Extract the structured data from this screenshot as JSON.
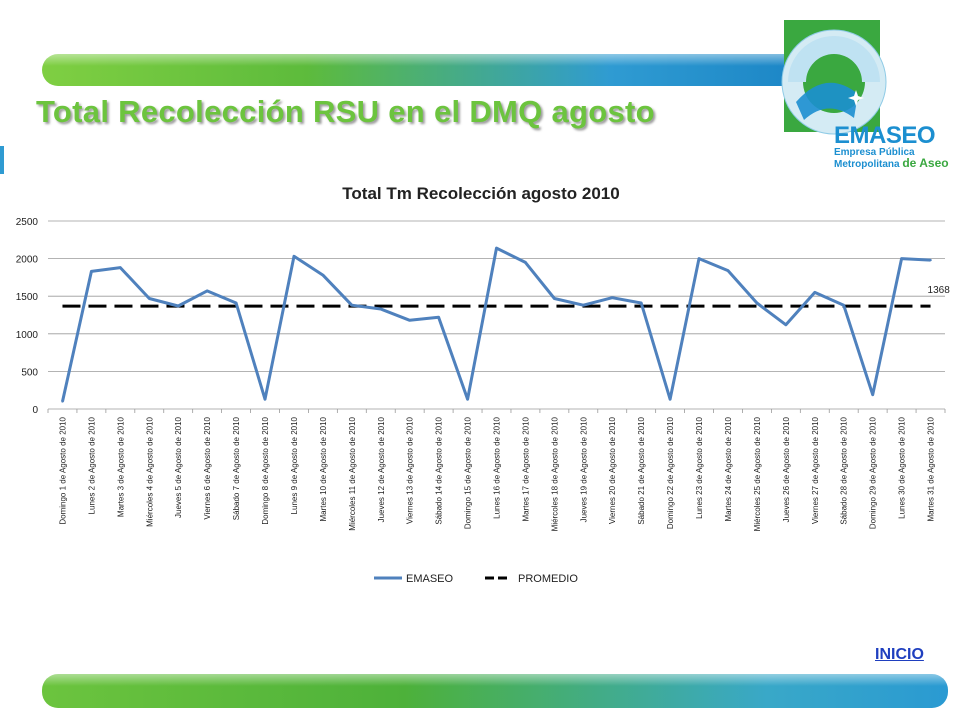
{
  "slide": {
    "title": "Total Recolección RSU en el DMQ agosto",
    "nav_link": "INICIO"
  },
  "logo": {
    "name": "EMASEO",
    "line1": "Empresa Pública",
    "line2_a": "Metropolitana",
    "line2_b": "de Aseo"
  },
  "colors": {
    "series_emaseo": "#4f81bd",
    "series_promedio": "#000000",
    "title_green": "#6cc43e",
    "brand_blue": "#1c8fd0",
    "brand_green": "#3aa840"
  },
  "chart_data": {
    "type": "line",
    "title": "Total Tm Recolección agosto 2010",
    "ylim": [
      0,
      2500
    ],
    "yticks": [
      0,
      500,
      1000,
      1500,
      2000,
      2500
    ],
    "grid": true,
    "legend_position": "bottom",
    "categories": [
      "Domingo 1 de Agosto de 2010",
      "Lunes 2 de Agosto de 2010",
      "Martes 3 de Agosto de 2010",
      "Miércoles 4 de Agosto de 2010",
      "Jueves 5 de Agosto de 2010",
      "Viernes 6 de Agosto de 2010",
      "Sábado 7 de Agosto de 2010",
      "Domingo 8 de Agosto de 2010",
      "Lunes 9 de Agosto de 2010",
      "Martes 10 de Agosto de 2010",
      "Miércoles 11 de Agosto de 2010",
      "Jueves 12 de Agosto de 2010",
      "Viernes 13 de Agosto de 2010",
      "Sábado 14 de Agosto de 2010",
      "Domingo 15 de Agosto de 2010",
      "Lunes 16 de Agosto de 2010",
      "Martes 17 de Agosto de 2010",
      "Miércoles 18 de Agosto de 2010",
      "Jueves 19 de Agosto de 2010",
      "Viernes 20 de Agosto de 2010",
      "Sábado 21 de Agosto de 2010",
      "Domingo 22 de Agosto de 2010",
      "Lunes 23 de Agosto de 2010",
      "Martes 24 de Agosto de 2010",
      "Miércoles 25 de Agosto de 2010",
      "Jueves 26 de Agosto de 2010",
      "Viernes 27 de Agosto de 2010",
      "Sábado 28 de Agosto de 2010",
      "Domingo 29 de Agosto de 2010",
      "Lunes 30 de Agosto de 2010",
      "Martes 31 de Agosto de 2010"
    ],
    "series": [
      {
        "name": "EMASEO",
        "style": "solid",
        "values": [
          100,
          1830,
          1880,
          1470,
          1370,
          1570,
          1410,
          130,
          2030,
          1780,
          1380,
          1330,
          1180,
          1220,
          130,
          2140,
          1950,
          1470,
          1380,
          1480,
          1410,
          130,
          2000,
          1840,
          1410,
          1120,
          1550,
          1380,
          190,
          2000,
          1980
        ]
      },
      {
        "name": "PROMEDIO",
        "style": "dashed",
        "constant": 1368,
        "data_label": "1368"
      }
    ]
  }
}
